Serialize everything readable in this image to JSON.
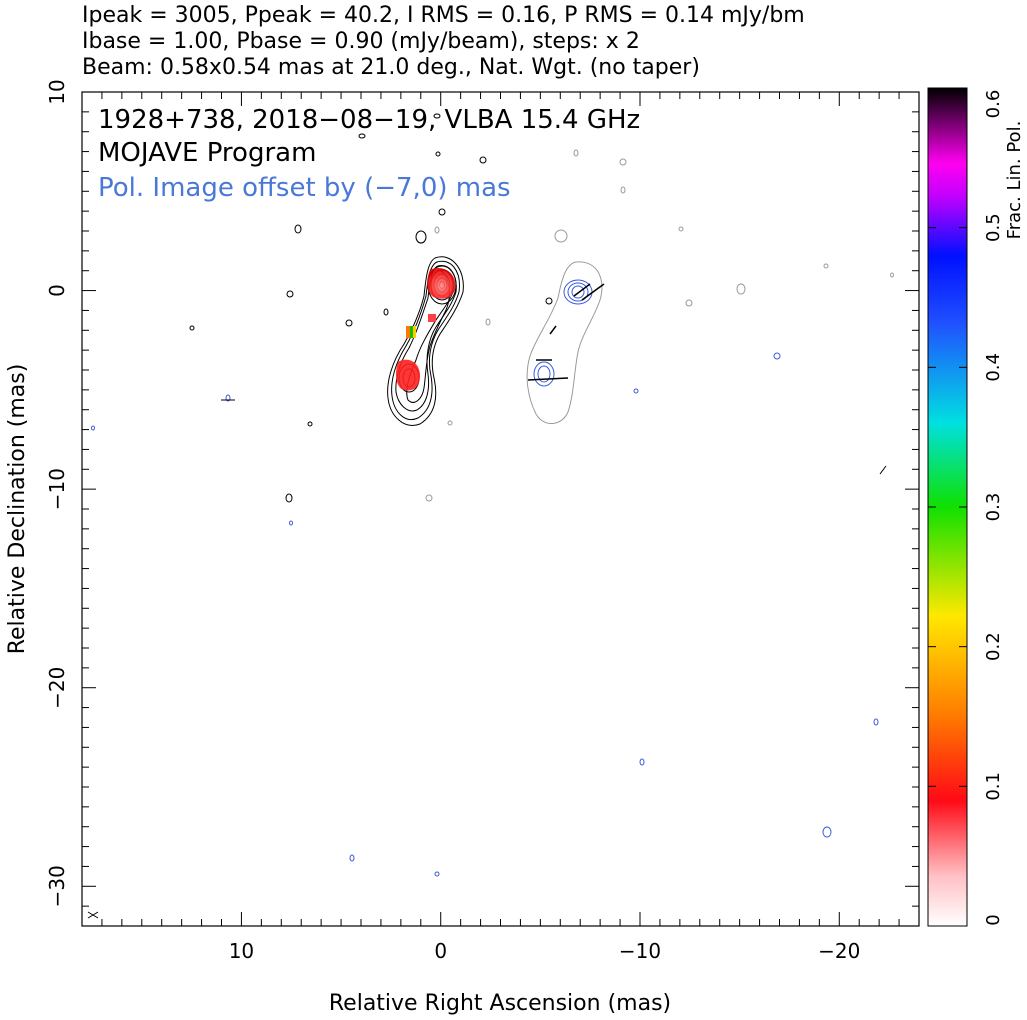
{
  "header": {
    "line1": "Ipeak = 3005, Ppeak = 40.2, I RMS = 0.16, P RMS = 0.14 mJy/bm",
    "line2": "Ibase = 1.00, Pbase = 0.90 (mJy/beam), steps: x 2",
    "line3": "Beam: 0.58x0.54 mas at 21.0 deg., Nat. Wgt. (no taper)"
  },
  "annotations": {
    "source_line": "1928+738, 2018−08−19, VLBA 15.4 GHz",
    "program_line": "MOJAVE Program",
    "pol_offset_line": "Pol. Image offset by (−7,0) mas",
    "pol_offset_color": "#4a78d8"
  },
  "colorbar": {
    "label": "Frac. Lin. Pol.",
    "range": [
      0,
      0.6
    ],
    "ticks": [
      "0",
      "0.1",
      "0.2",
      "0.3",
      "0.4",
      "0.5",
      "0.6"
    ]
  },
  "colors": {
    "stokes_i_contours": "#000000",
    "pol_contours": "#3b5bdb",
    "pol_offset_i_contours": "#9a9a9a"
  },
  "chart_data": {
    "type": "contour-map",
    "xlabel": "Relative Right Ascension (mas)",
    "ylabel": "Relative Declination (mas)",
    "xlim": [
      18,
      -24
    ],
    "ylim": [
      -32,
      10
    ],
    "x_ticks": [
      10,
      0,
      -10,
      -20
    ],
    "x_tick_labels": [
      "10",
      "0",
      "−10",
      "−20"
    ],
    "y_ticks": [
      10,
      0,
      -10,
      -20,
      -30
    ],
    "y_tick_labels": [
      "10",
      "0",
      "−10",
      "−20",
      "−30"
    ],
    "core_position": [
      0,
      0
    ],
    "jet_component_position": [
      1.6,
      -4.2
    ],
    "fractional_pol_blobs": [
      {
        "x": 0.4,
        "y": -1.3,
        "frac_pol": 0.08
      },
      {
        "x": 1.4,
        "y": -2.0,
        "frac_pol": 0.22
      },
      {
        "x": 1.8,
        "y": -4.3,
        "frac_pol": 0.1
      }
    ]
  }
}
